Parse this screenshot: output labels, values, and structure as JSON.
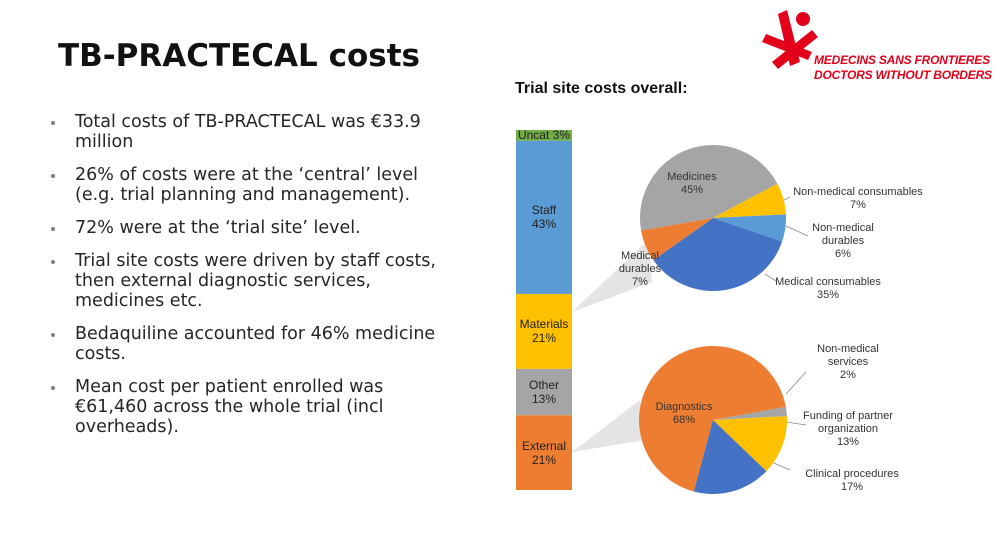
{
  "title": "TB-PRACTECAL costs",
  "bullets": [
    "Total costs of TB-PRACTECAL was €33.9 million",
    "26% of costs were at the ‘central’ level (e.g. trial planning and management).",
    "72% were at the ‘trial site’ level.",
    "Trial site costs were driven by staff costs, then external diagnostic services, medicines etc.",
    "Bedaquiline accounted for 46% medicine costs.",
    "Mean cost per patient enrolled was €61,460 across the whole trial (incl overheads)."
  ],
  "logo": {
    "line1": "MEDECINS SANS FRONTIERES",
    "line2": "DOCTORS WITHOUT BORDERS"
  },
  "chart_data": [
    {
      "type": "stacked-column",
      "title": "Trial site costs overall:",
      "series": [
        {
          "name": "External",
          "color": "#ed7d31",
          "values": [
            21
          ],
          "value_labels": [
            "21%"
          ]
        },
        {
          "name": "Other",
          "color": "#a5a5a5",
          "values": [
            13
          ],
          "value_labels": [
            "13%"
          ]
        },
        {
          "name": "Materials",
          "color": "#ffc000",
          "values": [
            21
          ],
          "value_labels": [
            "21%"
          ]
        },
        {
          "name": "Staff",
          "color": "#5b9bd5",
          "values": [
            43
          ],
          "value_labels": [
            "43%"
          ]
        },
        {
          "name": "Uncat",
          "color": "#70ad47",
          "values": [
            3
          ],
          "value_labels": [
            "3%"
          ]
        }
      ]
    },
    {
      "type": "pie",
      "categories": [
        "Medicines",
        "Non-medical consumables",
        "Non-medical durables",
        "Medical consumables",
        "Medical durables"
      ],
      "values": [
        45,
        7,
        6,
        35,
        7
      ],
      "value_labels": [
        "45%",
        "7%",
        "6%",
        "35%",
        "7%"
      ],
      "colors": [
        "#a5a5a5",
        "#ffc000",
        "#5b9bd5",
        "#4472c4",
        "#ed7d31"
      ]
    },
    {
      "type": "pie",
      "categories": [
        "Diagnostics",
        "Non-medical services",
        "Funding of partner organization",
        "Clinical procedures"
      ],
      "values": [
        68,
        2,
        13,
        17
      ],
      "value_labels": [
        "68%",
        "2%",
        "13%",
        "17%"
      ],
      "colors": [
        "#ed7d31",
        "#a5a5a5",
        "#ffc000",
        "#4472c4"
      ]
    }
  ]
}
